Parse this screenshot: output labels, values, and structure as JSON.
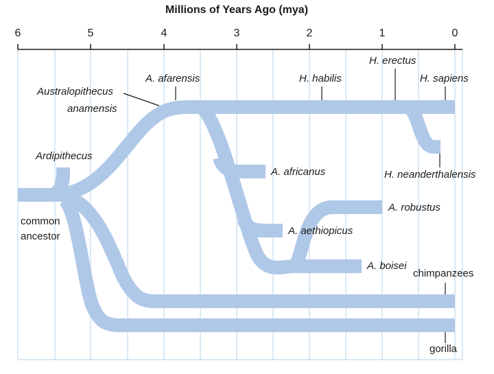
{
  "diagram": {
    "axis_title": "Millions of Years Ago (mya)",
    "ticks": [
      "6",
      "5",
      "4",
      "3",
      "2",
      "1",
      "0"
    ],
    "colors": {
      "branch": "#b0c8e8",
      "grid": "#b6d3e8",
      "text": "#1a1a1a"
    },
    "labels": {
      "australopithecus": "Australopithecus",
      "anamensis": "anamensis",
      "afarensis": "A. afarensis",
      "habilis": "H. habilis",
      "erectus": "H. erectus",
      "sapiens": "H. sapiens",
      "ardipithecus": "Ardipithecus",
      "africanus": "A. africanus",
      "neanderthalensis": "H. neanderthalensis",
      "robustus": "A. robustus",
      "aethiopicus": "A. aethiopicus",
      "boisei": "A. boisei",
      "chimpanzees": "chimpanzees",
      "gorilla": "gorilla",
      "common": "common",
      "ancestor": "ancestor"
    }
  }
}
